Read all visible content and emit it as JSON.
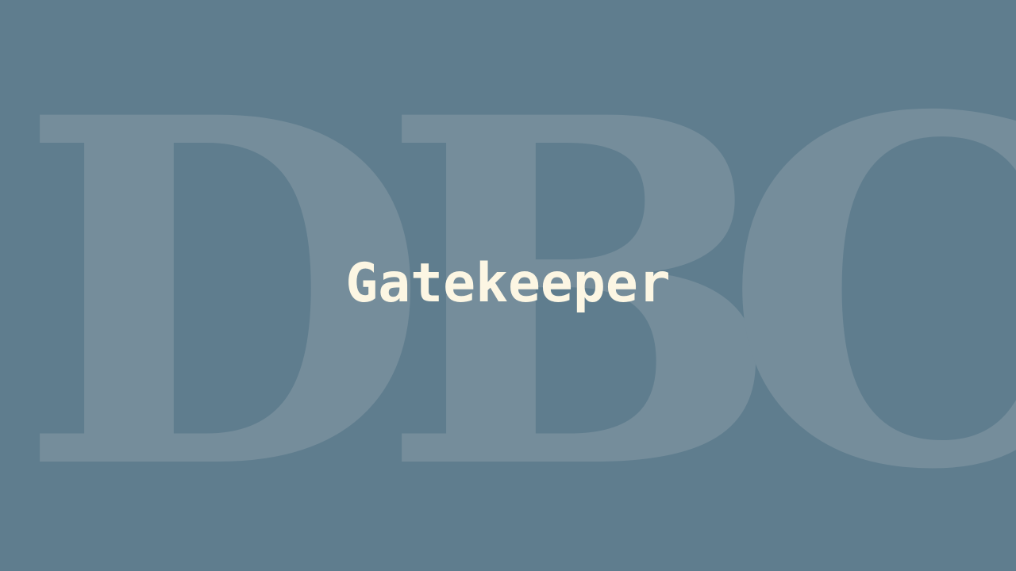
{
  "backdrop": {
    "letters": [
      "D",
      "B",
      "C"
    ]
  },
  "title": "Gatekeeper",
  "colors": {
    "background": "#5f7d8e",
    "backdrop_letters": "#758d9b",
    "title": "#fcf6e3"
  }
}
